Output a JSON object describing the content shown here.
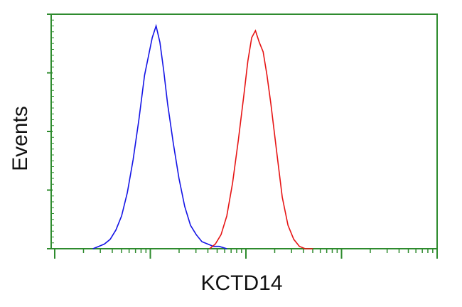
{
  "chart_data": {
    "type": "line",
    "xlabel": "KCTD14",
    "ylabel": "Events",
    "xlim": [
      0,
      4
    ],
    "ylim": [
      0,
      100
    ],
    "log_x": true,
    "frame_color": "#2e8b2e",
    "series": [
      {
        "color": "#1414e6",
        "x": [
          0.4,
          0.46,
          0.52,
          0.58,
          0.64,
          0.7,
          0.76,
          0.82,
          0.88,
          0.94,
          0.98,
          1.02,
          1.06,
          1.1,
          1.14,
          1.18,
          1.24,
          1.3,
          1.36,
          1.42,
          1.48,
          1.54,
          1.6,
          1.66,
          1.72,
          1.8
        ],
        "values": [
          0,
          1,
          2,
          4,
          8,
          14,
          24,
          38,
          55,
          74,
          82,
          90,
          95,
          88,
          76,
          62,
          45,
          30,
          18,
          10,
          6,
          3,
          2,
          1,
          1,
          0
        ]
      },
      {
        "color": "#e61414",
        "x": [
          1.62,
          1.68,
          1.74,
          1.8,
          1.86,
          1.92,
          1.98,
          2.02,
          2.06,
          2.1,
          2.14,
          2.18,
          2.22,
          2.26,
          2.32,
          2.38,
          2.44,
          2.5,
          2.56,
          2.62,
          2.7
        ],
        "values": [
          0,
          2,
          6,
          14,
          28,
          46,
          66,
          80,
          90,
          93,
          88,
          84,
          74,
          62,
          42,
          22,
          10,
          4,
          1,
          0,
          0
        ]
      }
    ]
  }
}
